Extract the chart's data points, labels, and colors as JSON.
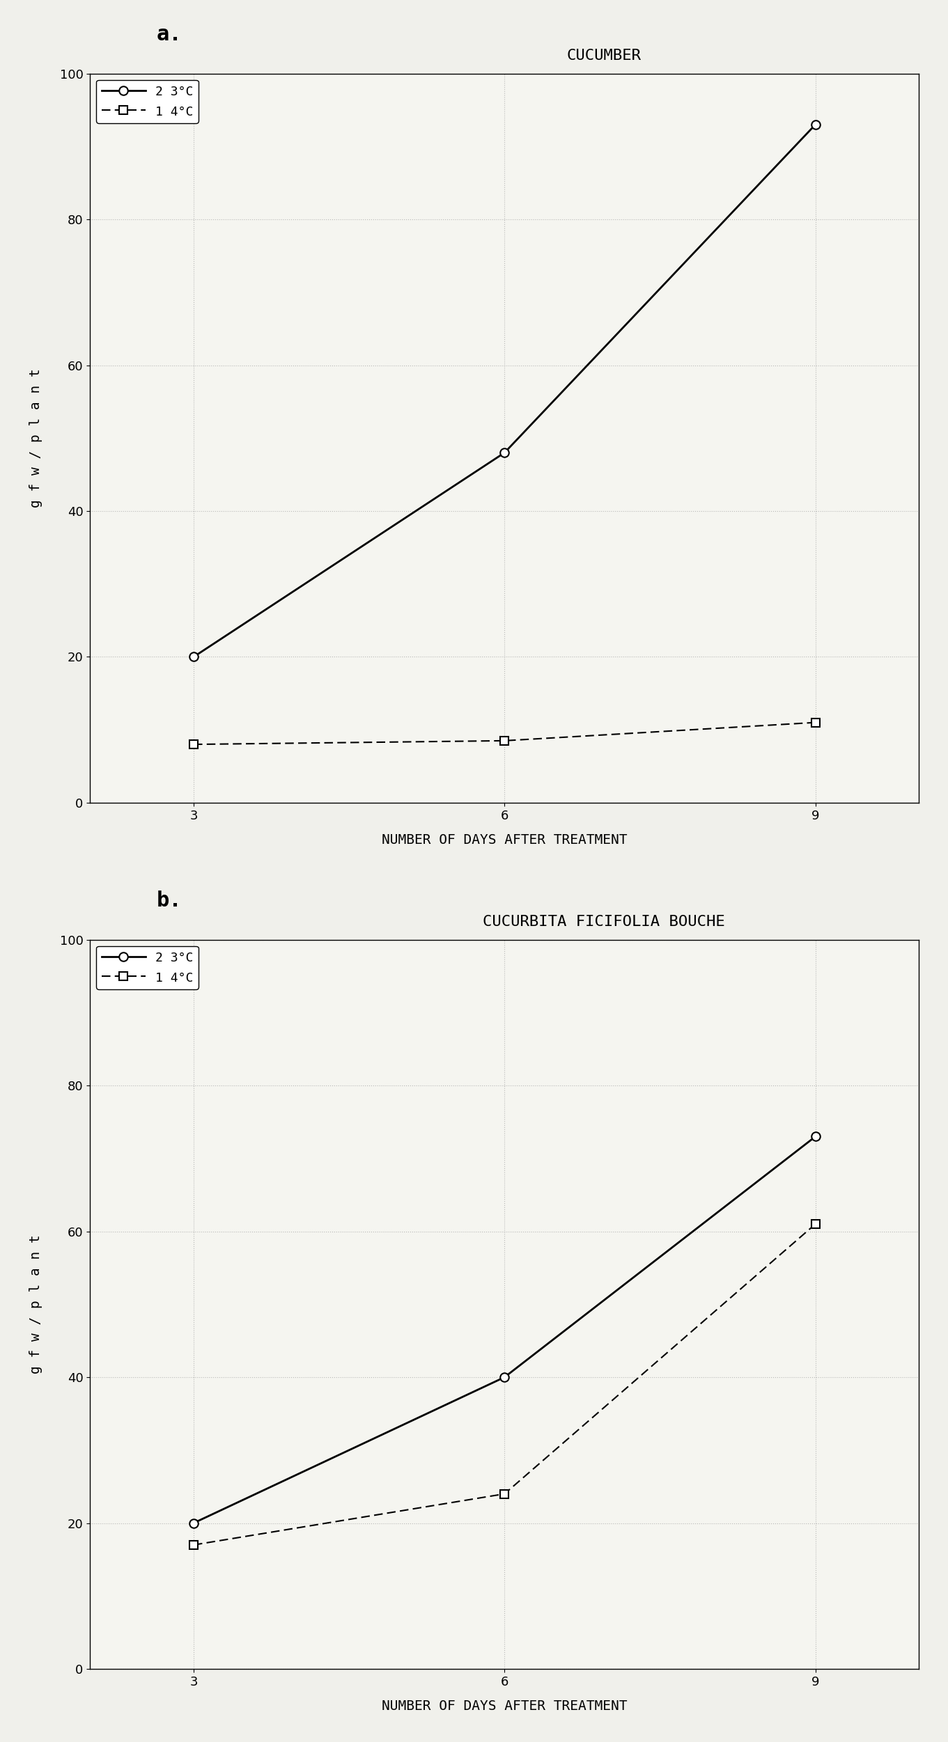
{
  "panel_a": {
    "title": "CUCUMBER",
    "label": "a.",
    "series_23": {
      "x": [
        3,
        6,
        9
      ],
      "y": [
        20,
        48,
        93
      ],
      "label": "2 3°C",
      "linestyle": "solid",
      "marker": "o",
      "color": "#000000",
      "linewidth": 2.0
    },
    "series_14": {
      "x": [
        3,
        6,
        9
      ],
      "y": [
        8,
        8.5,
        11
      ],
      "label": "1 4°C",
      "linestyle": "dashed",
      "marker": "s",
      "color": "#000000",
      "linewidth": 1.5
    }
  },
  "panel_b": {
    "title": "CUCURBITA FICIFOLIA BOUCHE",
    "label": "b.",
    "series_23": {
      "x": [
        3,
        6,
        9
      ],
      "y": [
        20,
        40,
        73
      ],
      "label": "2 3°C",
      "linestyle": "solid",
      "marker": "o",
      "color": "#000000",
      "linewidth": 2.0
    },
    "series_14": {
      "x": [
        3,
        6,
        9
      ],
      "y": [
        17,
        24,
        61
      ],
      "label": "1 4°C",
      "linestyle": "dashed",
      "marker": "s",
      "color": "#000000",
      "linewidth": 1.5
    }
  },
  "xlabel": "NUMBER OF DAYS AFTER TREATMENT",
  "ylabel": "g f w / p l a n t",
  "ylim": [
    0,
    100
  ],
  "yticks": [
    0,
    20,
    40,
    60,
    80,
    100
  ],
  "xticks": [
    3,
    6,
    9
  ],
  "xlim": [
    2,
    10
  ],
  "background_color": "#f5f5f0",
  "grid_color": "#aaaaaa",
  "title_fontsize": 16,
  "label_fontsize": 14,
  "tick_fontsize": 13,
  "legend_fontsize": 13
}
